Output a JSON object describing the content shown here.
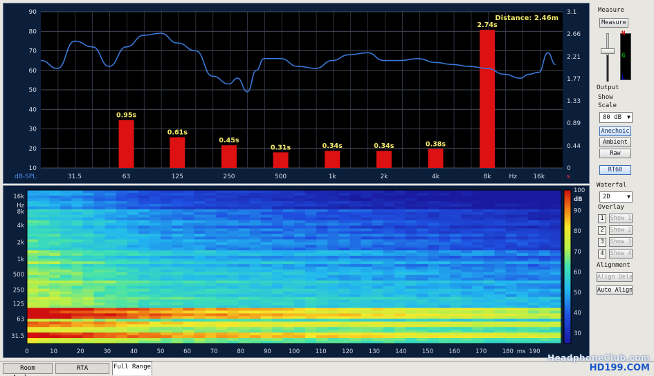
{
  "rt60": {
    "distance_label": "Distance: 2.46m",
    "left_axis_unit": "dB-SPL",
    "left_ticks": [
      "90",
      "80",
      "70",
      "60",
      "50",
      "40",
      "30",
      "20",
      "10"
    ],
    "right_ticks": [
      "3.1",
      "2.66",
      "2.21",
      "1.77",
      "1.33",
      "0.89",
      "0.44",
      "0"
    ],
    "right_unit": "s",
    "x_ticks": [
      "31.5",
      "63",
      "125",
      "250",
      "500",
      "1k",
      "2k",
      "4k",
      "8k",
      "16k"
    ],
    "x_unit": "Hz"
  },
  "chart_data": [
    {
      "type": "bar",
      "title": "",
      "categories": [
        "63",
        "125",
        "250",
        "500",
        "1k",
        "2k",
        "4k",
        "8k"
      ],
      "values": [
        0.95,
        0.61,
        0.45,
        0.31,
        0.34,
        0.34,
        0.38,
        2.74
      ],
      "value_labels": [
        "0.95s",
        "0.61s",
        "0.45s",
        "0.31s",
        "0.34s",
        "0.34s",
        "0.38s",
        "2.74s"
      ],
      "ylim": [
        0,
        3.1
      ],
      "ylabel": "s",
      "bar_color": "#dd1111"
    },
    {
      "type": "line",
      "xlabel": "Hz",
      "ylabel": "dB-SPL",
      "ylim": [
        10,
        90
      ],
      "x": [
        20,
        25,
        31.5,
        40,
        50,
        63,
        80,
        100,
        125,
        160,
        200,
        250,
        280,
        320,
        360,
        400,
        500,
        630,
        800,
        1000,
        1250,
        1600,
        2000,
        2500,
        3150,
        4000,
        5000,
        6300,
        8000,
        10000,
        12500,
        14000,
        16000,
        18000,
        20000
      ],
      "y": [
        65,
        61,
        75,
        72,
        62,
        72,
        78,
        79,
        74,
        70,
        57,
        53,
        56,
        49,
        60,
        66,
        66,
        62,
        61,
        65,
        68,
        69,
        65,
        65,
        66,
        64,
        63,
        62,
        61,
        58,
        56,
        58,
        59,
        69,
        63
      ],
      "color": "#3a78d8"
    }
  ],
  "waterfall": {
    "y_ticks": [
      "16k",
      "Hz",
      "8k",
      "4k",
      "2k",
      "1k",
      "500",
      "250",
      "125",
      "63",
      "31.5"
    ],
    "x_ticks": [
      "0",
      "10",
      "20",
      "30",
      "40",
      "50",
      "60",
      "70",
      "80",
      "90",
      "100",
      "110",
      "120",
      "130",
      "140",
      "150",
      "160",
      "170",
      "180",
      "190"
    ],
    "x_unit": "ms",
    "scale_ticks": [
      "100",
      "90",
      "80",
      "70",
      "60",
      "50",
      "40",
      "30"
    ],
    "scale_unit": "dB"
  },
  "side": {
    "measure_label": "Measure",
    "measure_button": "Measure",
    "level_n": "N",
    "level_g": "G",
    "level_l": "L",
    "output_label": "Output",
    "show_label": "Show",
    "scale_label": "Scale",
    "scale_value": "80 dB",
    "anechoic": "Anechoic",
    "ambient": "Ambient",
    "raw": "Raw",
    "rt60": "RT60",
    "waterfall_label": "Waterfal",
    "waterfall_value": "2D",
    "overlay_label": "Overlay",
    "overlays": [
      {
        "num": "1",
        "label": "Show 1"
      },
      {
        "num": "2",
        "label": "Show 2"
      },
      {
        "num": "3",
        "label": "Show 3"
      },
      {
        "num": "4",
        "label": "Show 4"
      }
    ],
    "alignment_label": "Alignment",
    "align_delay": "Align Delay",
    "auto_align": "Auto Align"
  },
  "tabs": [
    "Room Analyzer",
    "RTA",
    "Full Range"
  ],
  "watermark": {
    "line1": "HeadphoneClub.com",
    "line2": "HD199.COM"
  }
}
